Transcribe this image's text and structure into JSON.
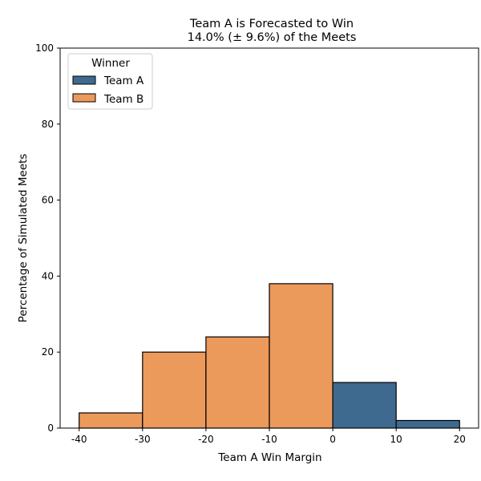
{
  "chart_data": {
    "type": "bar",
    "title_line1": "Team A is Forecasted to Win",
    "title_line2": "14.0% (± 9.6%) of the Meets",
    "xlabel": "Team A Win Margin",
    "ylabel": "Percentage of Simulated Meets",
    "xlim": [
      -43,
      23
    ],
    "ylim": [
      0,
      100
    ],
    "xticks": [
      -40,
      -30,
      -20,
      -10,
      0,
      10,
      20
    ],
    "yticks": [
      0,
      20,
      40,
      60,
      80,
      100
    ],
    "bins": [
      {
        "x0": -40,
        "x1": -30,
        "value": 4,
        "winner": "Team B"
      },
      {
        "x0": -30,
        "x1": -20,
        "value": 20,
        "winner": "Team B"
      },
      {
        "x0": -20,
        "x1": -10,
        "value": 24,
        "winner": "Team B"
      },
      {
        "x0": -10,
        "x1": 0,
        "value": 38,
        "winner": "Team B"
      },
      {
        "x0": 0,
        "x1": 10,
        "value": 12,
        "winner": "Team A"
      },
      {
        "x0": 10,
        "x1": 20,
        "value": 2,
        "winner": "Team A"
      }
    ],
    "legend": {
      "title": "Winner",
      "placement": "top-left",
      "entries": [
        {
          "name": "Team A",
          "color": "#3f6a8f"
        },
        {
          "name": "Team B",
          "color": "#ec995c"
        }
      ]
    },
    "grid": false
  }
}
